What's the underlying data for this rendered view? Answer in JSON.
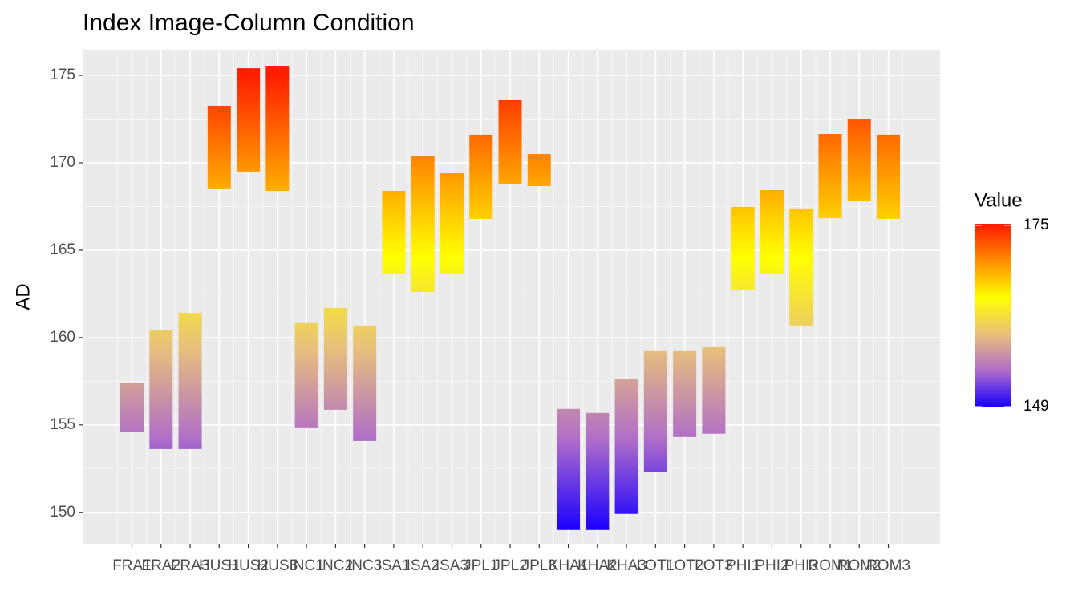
{
  "chart_data": {
    "type": "floating-bar",
    "title": "Index Image-Column Condition",
    "y_label": "AD",
    "categories": [
      "FRA1",
      "FRA2",
      "FRA3",
      "HUS1",
      "HUS2",
      "HUS3",
      "INC1",
      "INC2",
      "INC3",
      "ISA1",
      "ISA2",
      "ISA3",
      "JPL1",
      "JPL2",
      "JPL3",
      "KHA1",
      "KHA2",
      "KHA3",
      "LOT1",
      "LOT2",
      "LOT3",
      "PHI1",
      "PHI2",
      "PHI3",
      "ROM1",
      "ROM2",
      "ROM3"
    ],
    "ymin": [
      154.59,
      153.62,
      153.62,
      168.49,
      169.5,
      168.39,
      154.86,
      155.87,
      154.08,
      163.62,
      162.61,
      163.62,
      166.79,
      168.76,
      168.67,
      148.99,
      148.99,
      149.91,
      152.29,
      154.31,
      154.5,
      162.75,
      163.62,
      160.69,
      166.83,
      167.84,
      166.79
    ],
    "ymax": [
      157.39,
      160.41,
      161.42,
      173.26,
      175.41,
      175.55,
      160.83,
      161.7,
      160.69,
      168.39,
      170.41,
      169.4,
      171.61,
      173.58,
      170.5,
      155.92,
      155.69,
      157.61,
      159.27,
      159.27,
      159.45,
      167.48,
      168.44,
      167.39,
      171.65,
      172.52,
      171.61
    ],
    "ylim": [
      148.2,
      176.47
    ],
    "yticks": [
      150,
      155,
      160,
      165,
      170,
      175
    ],
    "grid": true,
    "legend": {
      "title": "Value",
      "ticks": [
        149,
        175
      ],
      "lim": [
        149,
        175
      ],
      "colors": [
        "#1a00ff",
        "#b06ec8",
        "#e8c07c",
        "#ffff00",
        "#ff9000",
        "#ff1e00"
      ]
    }
  }
}
